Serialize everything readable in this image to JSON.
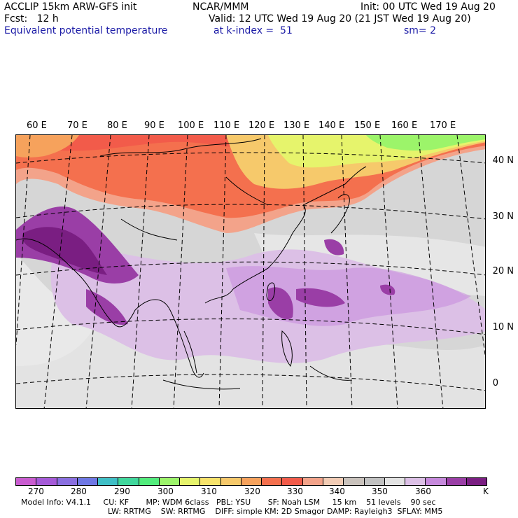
{
  "header": {
    "line1_left": "ACCLIP 15km ARW-GFS init",
    "line1_mid": "NCAR/MMM",
    "line1_right": "Init: 00 UTC Wed 19 Aug 20",
    "line2_left": "Fcst:   12 h",
    "line2_right": "Valid: 12 UTC Wed 19 Aug 20 (21 JST Wed 19 Aug 20)",
    "line3_left": "Equivalent potential temperature",
    "line3_mid": "at k-index =  51",
    "line3_right": "sm= 2"
  },
  "lon_labels": [
    "60 E",
    "70 E",
    "80 E",
    "90 E",
    "100 E",
    "110 E",
    "120 E",
    "130 E",
    "140 E",
    "150 E",
    "160 E",
    "170 E"
  ],
  "lat_labels": [
    "40 N",
    "30 N",
    "20 N",
    "10 N",
    "0"
  ],
  "legend": {
    "colors": [
      "#c95cd0",
      "#a55ad8",
      "#8a6fe0",
      "#6e77e4",
      "#3fbfc6",
      "#40d79c",
      "#52ec7c",
      "#9cf46a",
      "#e6f46c",
      "#f7e36b",
      "#f6c96b",
      "#f6a25c",
      "#f4704e",
      "#f25b4a",
      "#f3a38a",
      "#f2ccb5",
      "#c9c2bc",
      "#c2c2c2",
      "#e3e3e3",
      "#dcc0e6",
      "#c689dc",
      "#9a3ea6",
      "#7a1e82"
    ],
    "ticks": [
      "270",
      "280",
      "290",
      "300",
      "310",
      "320",
      "330",
      "340",
      "350",
      "360"
    ],
    "unit": "K"
  },
  "footer": {
    "line1": "Model Info: V4.1.1     CU: KF       MP: WDM 6class   PBL: YSU       SF: Noah LSM     15 km    51 levels    90 sec",
    "line2": "LW: RRTMG    SW: RRTMG    DIFF: simple KM: 2D Smagor DAMP: Rayleigh3  SFLAY: MM5"
  }
}
